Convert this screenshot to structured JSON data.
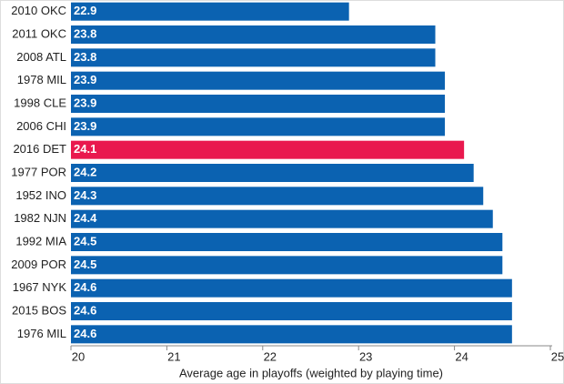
{
  "chart_data": {
    "type": "hbar",
    "categories": [
      "2010 OKC",
      "2011 OKC",
      "2008 ATL",
      "1978 MIL",
      "1998 CLE",
      "2006 CHI",
      "2016 DET",
      "1977 POR",
      "1952 INO",
      "1982 NJN",
      "1992 MIA",
      "2009 POR",
      "1967 NYK",
      "2015 BOS",
      "1976 MIL"
    ],
    "values": [
      22.9,
      23.8,
      23.8,
      23.9,
      23.9,
      23.9,
      24.1,
      24.2,
      24.3,
      24.4,
      24.5,
      24.5,
      24.6,
      24.6,
      24.6
    ],
    "colors": [
      "#0b62b1",
      "#0b62b1",
      "#0b62b1",
      "#0b62b1",
      "#0b62b1",
      "#0b62b1",
      "#e9184e",
      "#0b62b1",
      "#0b62b1",
      "#0b62b1",
      "#0b62b1",
      "#0b62b1",
      "#0b62b1",
      "#0b62b1",
      "#0b62b1"
    ],
    "xlabel": "Average age in playoffs (weighted by playing time)",
    "xlim": [
      20,
      25
    ],
    "xticks": [
      20,
      21,
      22,
      23,
      24,
      25
    ],
    "grid": false
  }
}
